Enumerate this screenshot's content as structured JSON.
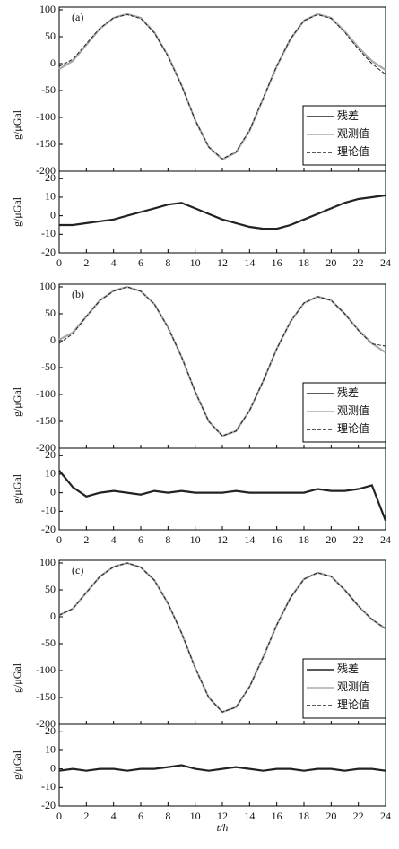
{
  "chart_data": [
    {
      "type": "line",
      "panel_label": "(a)",
      "y_label": "g/μGal",
      "y2_label": "g/μGal",
      "x": [
        0,
        1,
        2,
        3,
        4,
        5,
        6,
        7,
        8,
        9,
        10,
        11,
        12,
        13,
        14,
        15,
        16,
        17,
        18,
        19,
        20,
        21,
        22,
        23,
        24
      ],
      "xlim": [
        0,
        24
      ],
      "xticks": [
        0,
        2,
        4,
        6,
        8,
        10,
        12,
        14,
        16,
        18,
        20,
        22,
        24
      ],
      "ylim": [
        -200,
        105
      ],
      "yticks": [
        100,
        50,
        0,
        -50,
        -100,
        -150,
        -200
      ],
      "y2lim": [
        -20,
        24
      ],
      "y2ticks": [
        20,
        10,
        0,
        -10,
        -20
      ],
      "legend": "right",
      "series": [
        {
          "name": "残差",
          "color": "#222222",
          "style": "solid",
          "axis": "y2",
          "values": [
            -5,
            -5,
            -4,
            -3,
            -2,
            0,
            2,
            4,
            6,
            7,
            4,
            1,
            -2,
            -4,
            -6,
            -7,
            -7,
            -5,
            -2,
            1,
            4,
            7,
            9,
            10,
            11
          ]
        },
        {
          "name": "观测值",
          "color": "#aaaaaa",
          "style": "solid",
          "values": [
            -10,
            5,
            35,
            65,
            85,
            92,
            85,
            58,
            15,
            -40,
            -105,
            -155,
            -178,
            -165,
            -125,
            -65,
            -5,
            45,
            80,
            92,
            85,
            60,
            30,
            5,
            -12
          ]
        },
        {
          "name": "理论值",
          "color": "#222222",
          "style": "dashed",
          "values": [
            -5,
            8,
            37,
            66,
            85,
            91,
            84,
            57,
            14,
            -41,
            -105,
            -155,
            -177,
            -164,
            -124,
            -64,
            -4,
            46,
            80,
            91,
            84,
            58,
            27,
            0,
            -20
          ]
        }
      ]
    },
    {
      "type": "line",
      "panel_label": "(b)",
      "y_label": "g/μGal",
      "y2_label": "g/μGal",
      "x": [
        0,
        1,
        2,
        3,
        4,
        5,
        6,
        7,
        8,
        9,
        10,
        11,
        12,
        13,
        14,
        15,
        16,
        17,
        18,
        19,
        20,
        21,
        22,
        23,
        24
      ],
      "xlim": [
        0,
        24
      ],
      "xticks": [
        0,
        2,
        4,
        6,
        8,
        10,
        12,
        14,
        16,
        18,
        20,
        22,
        24
      ],
      "ylim": [
        -200,
        105
      ],
      "yticks": [
        100,
        50,
        0,
        -50,
        -100,
        -150,
        -200
      ],
      "y2lim": [
        -20,
        24
      ],
      "y2ticks": [
        20,
        10,
        0,
        -10,
        -20
      ],
      "legend": "right",
      "series": [
        {
          "name": "残差",
          "color": "#222222",
          "style": "solid",
          "axis": "y2",
          "values": [
            12,
            3,
            -2,
            0,
            1,
            0,
            -1,
            1,
            0,
            1,
            0,
            0,
            0,
            1,
            0,
            0,
            0,
            0,
            0,
            2,
            1,
            1,
            2,
            4,
            -15
          ]
        },
        {
          "name": "观测值",
          "color": "#aaaaaa",
          "style": "solid",
          "values": [
            2,
            15,
            45,
            75,
            93,
            100,
            92,
            68,
            25,
            -30,
            -95,
            -150,
            -177,
            -168,
            -130,
            -75,
            -15,
            35,
            70,
            82,
            75,
            50,
            20,
            -5,
            -22
          ]
        },
        {
          "name": "理论值",
          "color": "#222222",
          "style": "dashed",
          "values": [
            -5,
            13,
            45,
            75,
            92,
            100,
            92,
            68,
            25,
            -30,
            -95,
            -150,
            -177,
            -168,
            -130,
            -75,
            -15,
            35,
            70,
            82,
            75,
            50,
            19,
            -6,
            -10
          ]
        }
      ]
    },
    {
      "type": "line",
      "panel_label": "(c)",
      "y_label": "g/μGal",
      "y2_label": "g/μGal",
      "x_label": "t/h",
      "x": [
        0,
        1,
        2,
        3,
        4,
        5,
        6,
        7,
        8,
        9,
        10,
        11,
        12,
        13,
        14,
        15,
        16,
        17,
        18,
        19,
        20,
        21,
        22,
        23,
        24
      ],
      "xlim": [
        0,
        24
      ],
      "xticks": [
        0,
        2,
        4,
        6,
        8,
        10,
        12,
        14,
        16,
        18,
        20,
        22,
        24
      ],
      "ylim": [
        -200,
        105
      ],
      "yticks": [
        100,
        50,
        0,
        -50,
        -100,
        -150,
        -200
      ],
      "y2lim": [
        -20,
        24
      ],
      "y2ticks": [
        20,
        10,
        0,
        -10,
        -20
      ],
      "legend": "right",
      "series": [
        {
          "name": "残差",
          "color": "#222222",
          "style": "solid",
          "axis": "y2",
          "values": [
            -1,
            0,
            -1,
            0,
            0,
            -1,
            0,
            0,
            1,
            2,
            0,
            -1,
            0,
            1,
            0,
            -1,
            0,
            0,
            -1,
            0,
            0,
            -1,
            0,
            0,
            -1
          ]
        },
        {
          "name": "观测值",
          "color": "#aaaaaa",
          "style": "solid",
          "values": [
            3,
            15,
            45,
            75,
            93,
            100,
            92,
            68,
            25,
            -30,
            -95,
            -150,
            -177,
            -168,
            -130,
            -75,
            -15,
            35,
            70,
            82,
            75,
            50,
            20,
            -5,
            -22
          ]
        },
        {
          "name": "理论值",
          "color": "#222222",
          "style": "dashed",
          "values": [
            3,
            15,
            45,
            75,
            93,
            100,
            92,
            68,
            25,
            -30,
            -95,
            -150,
            -177,
            -168,
            -130,
            -75,
            -15,
            35,
            70,
            82,
            75,
            50,
            20,
            -5,
            -22
          ]
        }
      ]
    }
  ]
}
